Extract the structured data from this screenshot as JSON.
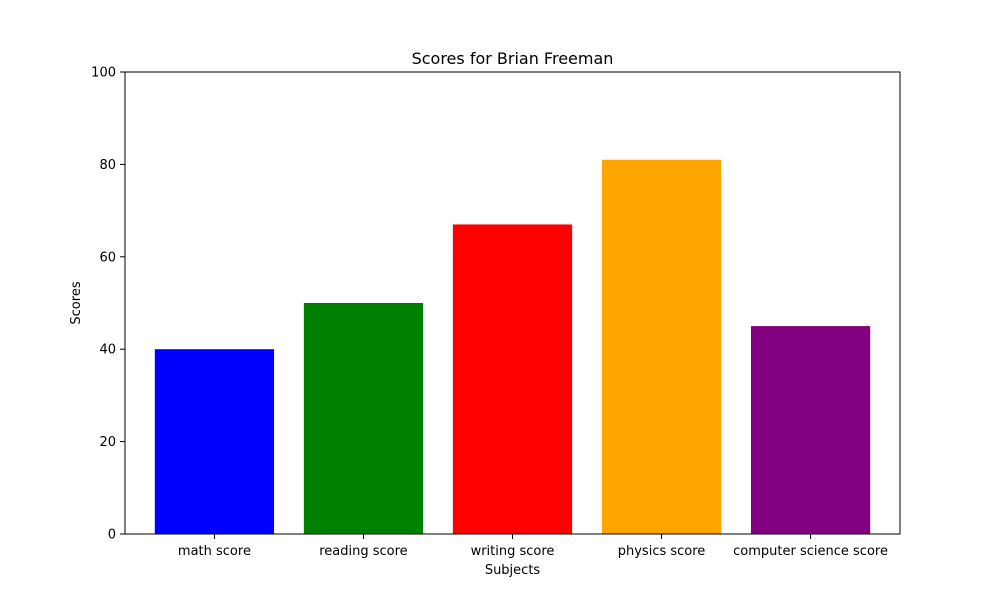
{
  "chart_data": {
    "type": "bar",
    "title": "Scores for Brian Freeman",
    "xlabel": "Subjects",
    "ylabel": "Scores",
    "categories": [
      "math score",
      "reading score",
      "writing score",
      "physics score",
      "computer science score"
    ],
    "values": [
      40,
      50,
      67,
      81,
      45
    ],
    "colors": [
      "#0000ff",
      "#008000",
      "#ff0000",
      "#ffa500",
      "#800080"
    ],
    "ylim": [
      0,
      100
    ],
    "yticks": [
      "0",
      "20",
      "40",
      "60",
      "80",
      "100"
    ],
    "grid": false
  }
}
